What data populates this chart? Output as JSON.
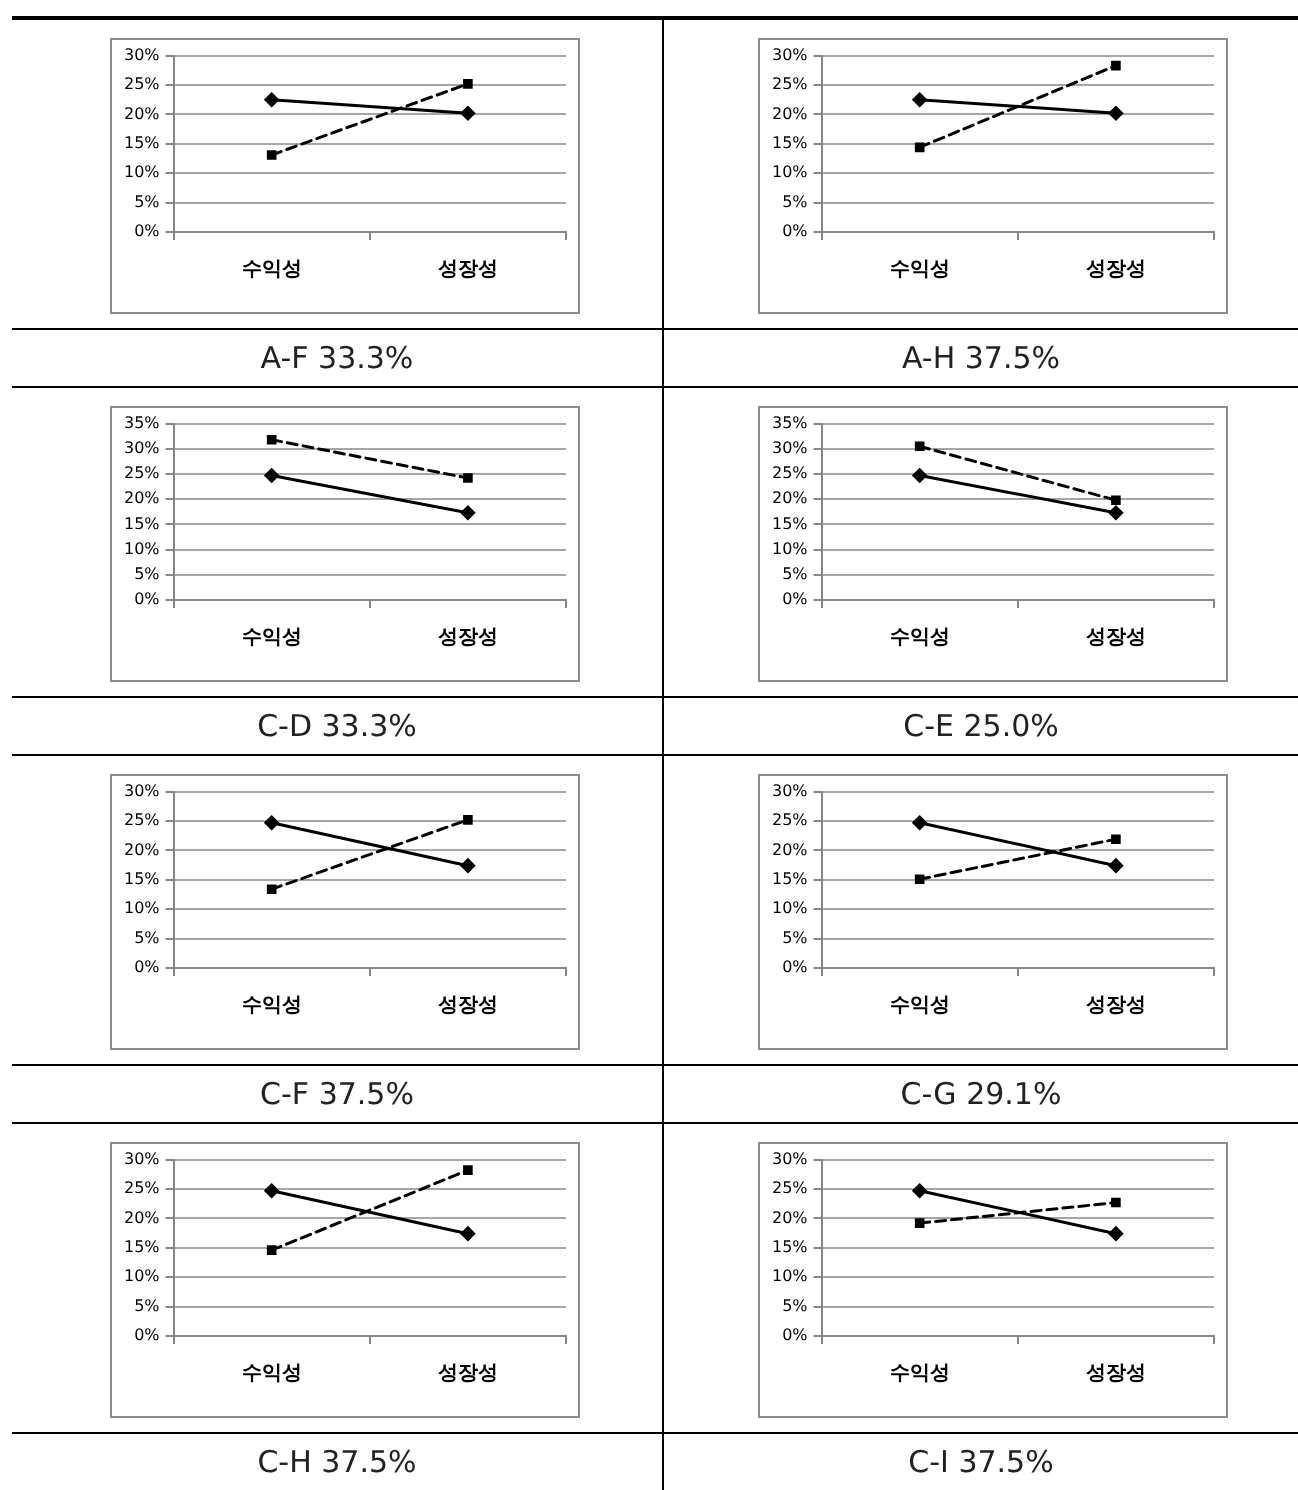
{
  "chart_data": [
    {
      "type": "line",
      "title": "A-F 33.3%",
      "categories": [
        "수익성",
        "성장성"
      ],
      "series": [
        {
          "color": "#000000",
          "values": [
            22.5,
            20.2
          ],
          "marker": "diamond",
          "line_style": "solid"
        },
        {
          "color": "#000000",
          "values": [
            13.1,
            25.2
          ],
          "marker": "square",
          "line_style": "dashed"
        }
      ],
      "ylim": [
        0,
        30
      ],
      "yticks": [
        {
          "value": 0,
          "label": "0%"
        },
        {
          "value": 5,
          "label": "5%"
        },
        {
          "value": 10,
          "label": "10%"
        },
        {
          "value": 15,
          "label": "15%"
        },
        {
          "value": 20,
          "label": "20%"
        },
        {
          "value": 25,
          "label": "25%"
        },
        {
          "value": 30,
          "label": "30%"
        }
      ],
      "grid": "y"
    },
    {
      "type": "line",
      "title": "A-H 37.5%",
      "categories": [
        "수익성",
        "성장성"
      ],
      "series": [
        {
          "color": "#000000",
          "values": [
            22.5,
            20.2
          ],
          "marker": "diamond",
          "line_style": "solid"
        },
        {
          "color": "#000000",
          "values": [
            14.4,
            28.3
          ],
          "marker": "square",
          "line_style": "dashed"
        }
      ],
      "ylim": [
        0,
        30
      ],
      "yticks": [
        {
          "value": 0,
          "label": "0%"
        },
        {
          "value": 5,
          "label": "5%"
        },
        {
          "value": 10,
          "label": "10%"
        },
        {
          "value": 15,
          "label": "15%"
        },
        {
          "value": 20,
          "label": "20%"
        },
        {
          "value": 25,
          "label": "25%"
        },
        {
          "value": 30,
          "label": "30%"
        }
      ],
      "grid": "y"
    },
    {
      "type": "line",
      "title": "C-D 33.3%",
      "categories": [
        "수익성",
        "성장성"
      ],
      "series": [
        {
          "color": "#000000",
          "values": [
            24.7,
            17.3
          ],
          "marker": "diamond",
          "line_style": "solid"
        },
        {
          "color": "#000000",
          "values": [
            31.8,
            24.2
          ],
          "marker": "square",
          "line_style": "dashed"
        }
      ],
      "ylim": [
        0,
        35
      ],
      "yticks": [
        {
          "value": 0,
          "label": "0%"
        },
        {
          "value": 5,
          "label": "5%"
        },
        {
          "value": 10,
          "label": "10%"
        },
        {
          "value": 15,
          "label": "15%"
        },
        {
          "value": 20,
          "label": "20%"
        },
        {
          "value": 25,
          "label": "25%"
        },
        {
          "value": 30,
          "label": "30%"
        },
        {
          "value": 35,
          "label": "35%"
        }
      ],
      "grid": "y"
    },
    {
      "type": "line",
      "title": "C-E 25.0%",
      "categories": [
        "수익성",
        "성장성"
      ],
      "series": [
        {
          "color": "#000000",
          "values": [
            24.7,
            17.3
          ],
          "marker": "diamond",
          "line_style": "solid"
        },
        {
          "color": "#000000",
          "values": [
            30.5,
            19.8
          ],
          "marker": "square",
          "line_style": "dashed"
        }
      ],
      "ylim": [
        0,
        35
      ],
      "yticks": [
        {
          "value": 0,
          "label": "0%"
        },
        {
          "value": 5,
          "label": "5%"
        },
        {
          "value": 10,
          "label": "10%"
        },
        {
          "value": 15,
          "label": "15%"
        },
        {
          "value": 20,
          "label": "20%"
        },
        {
          "value": 25,
          "label": "25%"
        },
        {
          "value": 30,
          "label": "30%"
        },
        {
          "value": 35,
          "label": "35%"
        }
      ],
      "grid": "y"
    },
    {
      "type": "line",
      "title": "C-F 37.5%",
      "categories": [
        "수익성",
        "성장성"
      ],
      "series": [
        {
          "color": "#000000",
          "values": [
            24.7,
            17.4
          ],
          "marker": "diamond",
          "line_style": "solid"
        },
        {
          "color": "#000000",
          "values": [
            13.4,
            25.2
          ],
          "marker": "square",
          "line_style": "dashed"
        }
      ],
      "ylim": [
        0,
        30
      ],
      "yticks": [
        {
          "value": 0,
          "label": "0%"
        },
        {
          "value": 5,
          "label": "5%"
        },
        {
          "value": 10,
          "label": "10%"
        },
        {
          "value": 15,
          "label": "15%"
        },
        {
          "value": 20,
          "label": "20%"
        },
        {
          "value": 25,
          "label": "25%"
        },
        {
          "value": 30,
          "label": "30%"
        }
      ],
      "grid": "y"
    },
    {
      "type": "line",
      "title": "C-G 29.1%",
      "categories": [
        "수익성",
        "성장성"
      ],
      "series": [
        {
          "color": "#000000",
          "values": [
            24.7,
            17.4
          ],
          "marker": "diamond",
          "line_style": "solid"
        },
        {
          "color": "#000000",
          "values": [
            15.1,
            21.9
          ],
          "marker": "square",
          "line_style": "dashed"
        }
      ],
      "ylim": [
        0,
        30
      ],
      "yticks": [
        {
          "value": 0,
          "label": "0%"
        },
        {
          "value": 5,
          "label": "5%"
        },
        {
          "value": 10,
          "label": "10%"
        },
        {
          "value": 15,
          "label": "15%"
        },
        {
          "value": 20,
          "label": "20%"
        },
        {
          "value": 25,
          "label": "25%"
        },
        {
          "value": 30,
          "label": "30%"
        }
      ],
      "grid": "y"
    },
    {
      "type": "line",
      "title": "C-H 37.5%",
      "categories": [
        "수익성",
        "성장성"
      ],
      "series": [
        {
          "color": "#000000",
          "values": [
            24.7,
            17.4
          ],
          "marker": "diamond",
          "line_style": "solid"
        },
        {
          "color": "#000000",
          "values": [
            14.6,
            28.2
          ],
          "marker": "square",
          "line_style": "dashed"
        }
      ],
      "ylim": [
        0,
        30
      ],
      "yticks": [
        {
          "value": 0,
          "label": "0%"
        },
        {
          "value": 5,
          "label": "5%"
        },
        {
          "value": 10,
          "label": "10%"
        },
        {
          "value": 15,
          "label": "15%"
        },
        {
          "value": 20,
          "label": "20%"
        },
        {
          "value": 25,
          "label": "25%"
        },
        {
          "value": 30,
          "label": "30%"
        }
      ],
      "grid": "y"
    },
    {
      "type": "line",
      "title": "C-I 37.5%",
      "categories": [
        "수익성",
        "성장성"
      ],
      "series": [
        {
          "color": "#000000",
          "values": [
            24.7,
            17.4
          ],
          "marker": "diamond",
          "line_style": "solid"
        },
        {
          "color": "#000000",
          "values": [
            19.2,
            22.7
          ],
          "marker": "square",
          "line_style": "dashed"
        }
      ],
      "ylim": [
        0,
        30
      ],
      "yticks": [
        {
          "value": 0,
          "label": "0%"
        },
        {
          "value": 5,
          "label": "5%"
        },
        {
          "value": 10,
          "label": "10%"
        },
        {
          "value": 15,
          "label": "15%"
        },
        {
          "value": 20,
          "label": "20%"
        },
        {
          "value": 25,
          "label": "25%"
        },
        {
          "value": 30,
          "label": "30%"
        }
      ],
      "grid": "y"
    }
  ]
}
